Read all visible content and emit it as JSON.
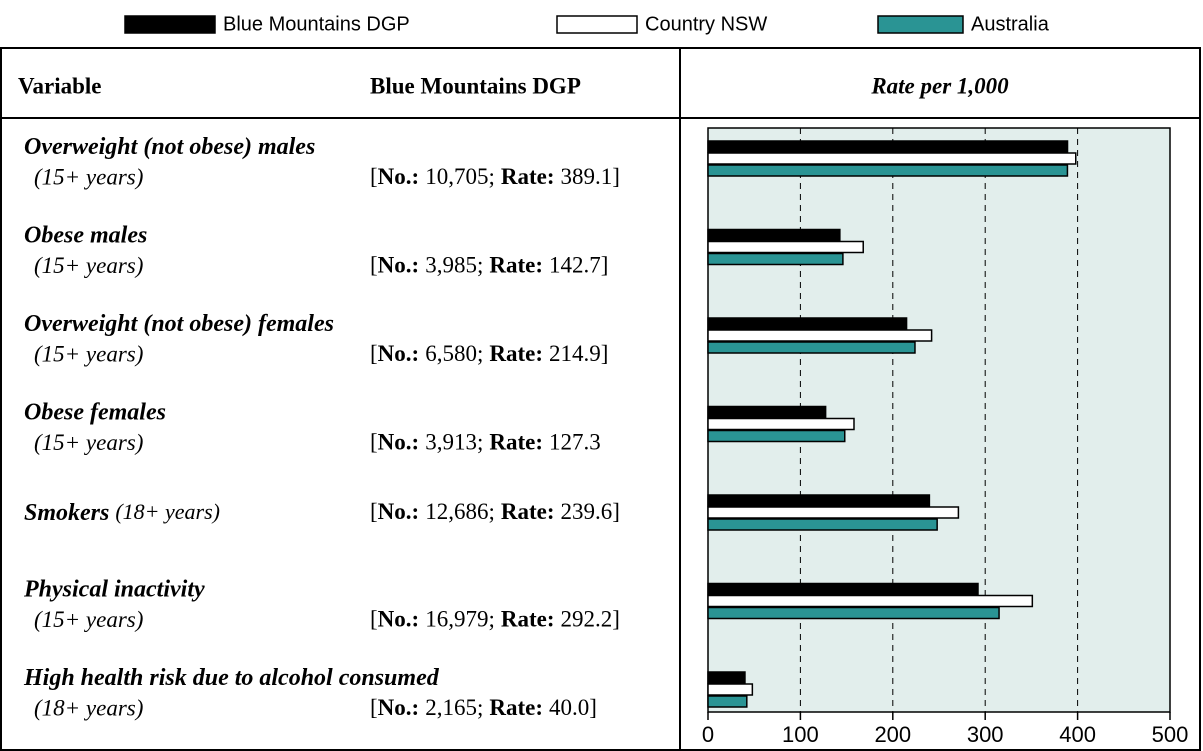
{
  "chart_data": {
    "type": "bar",
    "orientation": "horizontal",
    "header": {
      "variable": "Variable",
      "region": "Blue Mountains DGP",
      "rate": "Rate per 1,000"
    },
    "row_format": {
      "open": "[",
      "no": "No.:",
      "sep": ";",
      "rate": "Rate:"
    },
    "rows": [
      {
        "name": "Overweight (not obese) males",
        "age": "(15+ years)",
        "no": "10,705",
        "close": "]"
      },
      {
        "name": "Obese males",
        "age": "(15+ years)",
        "no": "3,985",
        "close": "]"
      },
      {
        "name": "Overweight (not obese) females",
        "age": "(15+ years)",
        "no": "6,580",
        "close": "]"
      },
      {
        "name": "Obese females",
        "age": "(15+ years)",
        "no": "3,913"
      },
      {
        "name": "Smokers",
        "age": "(18+ years)",
        "no": "12,686",
        "close": "]",
        "inline": true
      },
      {
        "name": "Physical inactivity",
        "age": "(15+ years)",
        "no": "16,979",
        "close": "]"
      },
      {
        "name": "High health risk due to alcohol consumed",
        "age": "(18+ years)",
        "no": "2,165",
        "close": "]"
      }
    ],
    "series": [
      {
        "name": "Blue Mountains DGP",
        "color": "#000000",
        "values": [
          389.1,
          142.7,
          214.9,
          127.3,
          239.6,
          292.2,
          40.0
        ],
        "value_labels": [
          "389.1",
          "142.7",
          "214.9",
          "127.3",
          "239.6",
          "292.2",
          "40.0"
        ]
      },
      {
        "name": "Country NSW",
        "color": "#ffffff",
        "values": [
          398,
          168,
          242,
          158,
          271,
          351,
          48
        ]
      },
      {
        "name": "Australia",
        "color": "#2a9494",
        "values": [
          389,
          146,
          224,
          148,
          248,
          315,
          42
        ]
      }
    ],
    "xlim": [
      0,
      500
    ],
    "xticks": [
      0,
      100,
      200,
      300,
      400,
      500
    ],
    "grid": true,
    "plot_color": "#e2eeec"
  }
}
